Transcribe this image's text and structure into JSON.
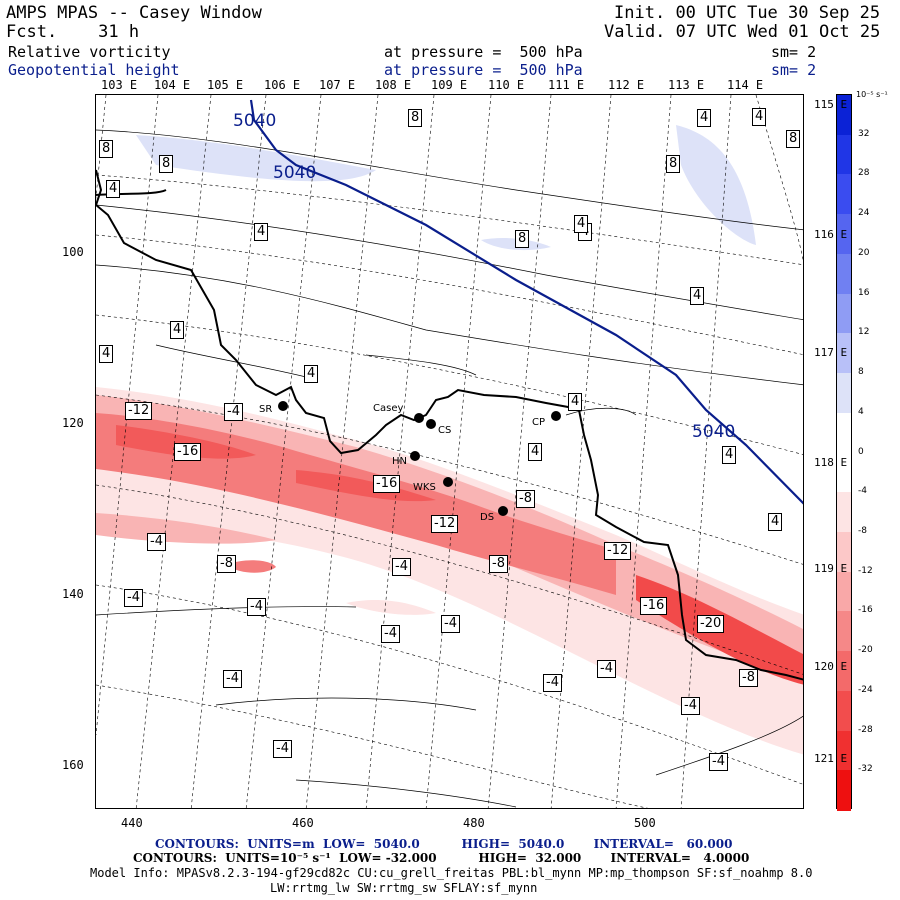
{
  "header": {
    "model_title": "AMPS MPAS -- Casey Window",
    "init_label": "Init.",
    "init_value": "00 UTC Tue 30 Sep 25",
    "forecast_label": "Fcst.",
    "forecast_hours": "31 h",
    "valid_label": "Valid.",
    "valid_value": "07 UTC Wed 01 Oct 25",
    "field1": "Relative vorticity",
    "field1_level": "at pressure =  500 hPa",
    "field1_smooth": "sm= 2",
    "field2": "Geopotential height",
    "field2_level": "at pressure =  500 hPa",
    "field2_smooth": "sm= 2"
  },
  "colors": {
    "navy": "#0a1e8c",
    "red_strong": "#f23c3c",
    "red_light": "#fde4e4",
    "blue_light": "#dde2f8"
  },
  "axes": {
    "lon_top_labels": [
      "103 E",
      "104 E",
      "105 E",
      "106 E",
      "107 E",
      "108 E",
      "109 E",
      "110 E",
      "111 E",
      "112 E",
      "113 E",
      "114 E"
    ],
    "lon_right_labels": [
      "115 E",
      "116 E",
      "117 E",
      "118 E",
      "119 E",
      "120 E",
      "121 E"
    ],
    "y_ticks": [
      "100",
      "120",
      "140",
      "160"
    ],
    "x_ticks": [
      "440",
      "460",
      "480",
      "500"
    ]
  },
  "stations": [
    {
      "label": "SR"
    },
    {
      "label": "Casey"
    },
    {
      "label": "CS"
    },
    {
      "label": "CP"
    },
    {
      "label": "HN"
    },
    {
      "label": "WKS"
    },
    {
      "label": "DS"
    }
  ],
  "contour_labels": {
    "height": [
      "5040",
      "5040",
      "5040"
    ],
    "vorticity": [
      "8",
      "8",
      "8",
      "8",
      "4",
      "4",
      "4",
      "8",
      "4",
      "8",
      "4",
      "4",
      "4",
      "4",
      "4",
      "4",
      "4",
      "4",
      "4",
      "4",
      "-12",
      "-4",
      "-16",
      "-16",
      "-12",
      "-8",
      "-12",
      "-8",
      "-4",
      "-8",
      "-4",
      "-4",
      "-4",
      "-4",
      "-16",
      "-20",
      "-4",
      "-8",
      "-4",
      "-4",
      "-4",
      "-4",
      "-4",
      "-4"
    ]
  },
  "legend": {
    "unit": "10⁻⁵ s⁻¹",
    "values": [
      "32",
      "28",
      "24",
      "20",
      "16",
      "12",
      "8",
      "4",
      "0",
      "-4",
      "-8",
      "-12",
      "-16",
      "-20",
      "-24",
      "-28",
      "-32"
    ]
  },
  "footer": {
    "line1": "CONTOURS:  UNITS=m  LOW=  5040.0          HIGH=  5040.0       INTERVAL=   60.000",
    "line2": "CONTOURS:  UNITS=10⁻⁵ s⁻¹  LOW= -32.000          HIGH=  32.000       INTERVAL=   4.0000",
    "line3": "Model Info: MPASv8.2.3-194-gf29cd82c CU:cu_grell_freitas PBL:bl_mynn MP:mp_thompson SF:sf_noahmp 8.0",
    "line4": "LW:rrtmg_lw SW:rrtmg_sw SFLAY:sf_mynn"
  }
}
